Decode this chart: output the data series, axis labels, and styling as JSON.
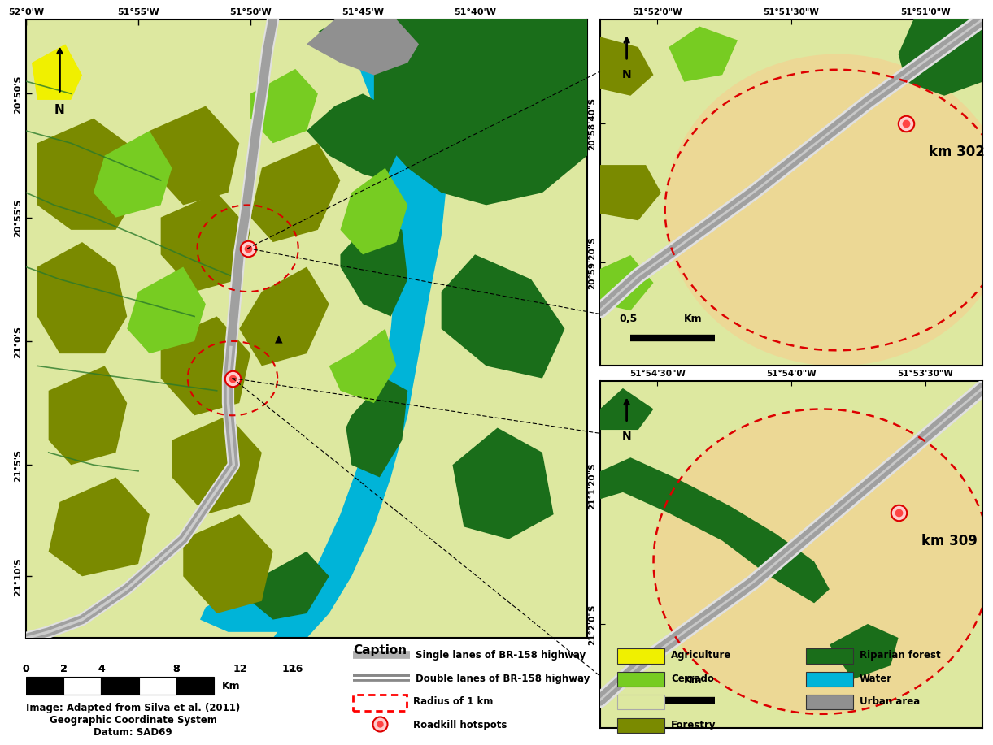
{
  "fig_width": 12.0,
  "fig_height": 8.98,
  "fig_dpi": 100,
  "bg_color": "#ffffff",
  "main_map_xticks": [
    "52°0'W",
    "51°55'W",
    "51°50'W",
    "51°45'W",
    "51°40'W"
  ],
  "main_map_yticks": [
    "20°50'S",
    "20°55'S",
    "21°0'S",
    "21°5'S",
    "21°10'S"
  ],
  "inset1_xticks": [
    "51°52'0\"W",
    "51°51'30\"W",
    "51°51'0\"W"
  ],
  "inset1_yticks": [
    "20°58'40\"S",
    "20°59'20\"S"
  ],
  "inset2_xticks": [
    "51°54'30\"W",
    "51°54'0\"W",
    "51°53'30\"W"
  ],
  "inset2_yticks": [
    "21°1'20\"S",
    "21°2'0\"S"
  ],
  "caption_title": "Caption",
  "scale_text": "Image: Adapted from Silva et al. (2011)\nGeographic Coordinate System\nDatum: SAD69",
  "colors": {
    "pasture": "#dde8a0",
    "forestry": "#7a8a00",
    "riparian": "#1a6e1a",
    "water": "#00b4d8",
    "cerrado": "#77cc22",
    "agriculture": "#f0f000",
    "urban": "#909090",
    "highway_outer": "#c0c0c0",
    "highway_inner": "#888888",
    "hotspot_fill": "#ff4444",
    "hotspot_ring": "#ffcccc",
    "dashed_red": "#dd0000",
    "inset_circle": "#f5d090",
    "stream": "#2a7a2a"
  }
}
